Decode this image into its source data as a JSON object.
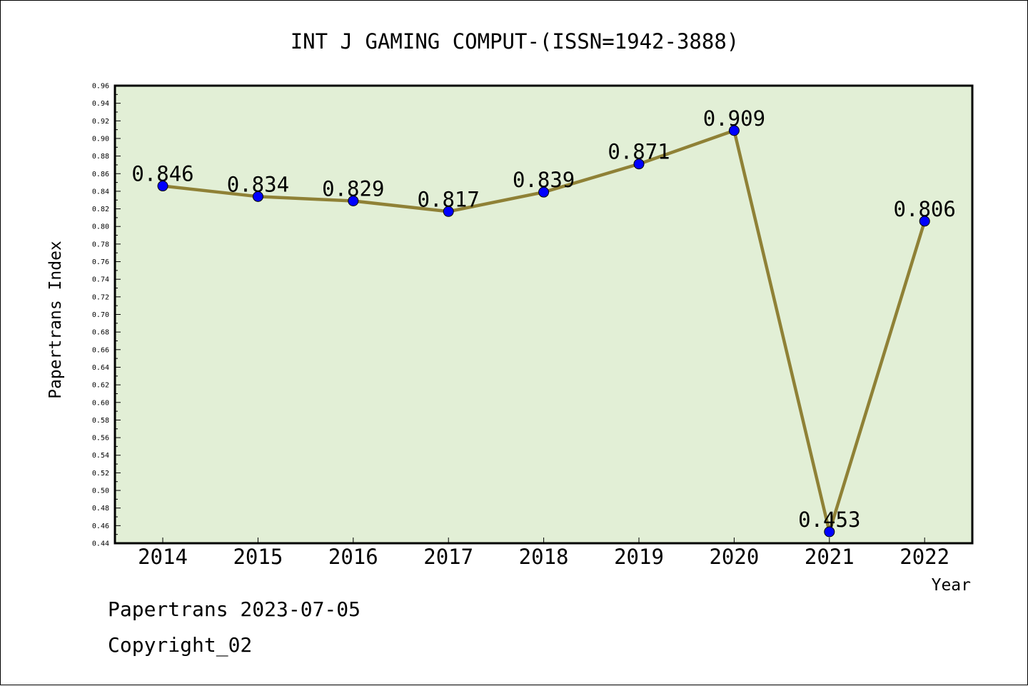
{
  "chart_data": {
    "type": "line",
    "title": "INT J GAMING COMPUT-(ISSN=1942-3888)",
    "xlabel": "Year",
    "ylabel": "Papertrans Index",
    "categories": [
      "2014",
      "2015",
      "2016",
      "2017",
      "2018",
      "2019",
      "2020",
      "2021",
      "2022"
    ],
    "values": [
      0.846,
      0.834,
      0.829,
      0.817,
      0.839,
      0.871,
      0.909,
      0.453,
      0.806
    ],
    "data_labels": [
      "0.846",
      "0.834",
      "0.829",
      "0.817",
      "0.839",
      "0.871",
      "0.909",
      "0.453",
      "0.806"
    ],
    "ylim": [
      0.44,
      0.96
    ],
    "ytick_step": 0.02,
    "ytick_labels": [
      "0.44",
      "0.46",
      "0.48",
      "0.50",
      "0.52",
      "0.54",
      "0.56",
      "0.58",
      "0.60",
      "0.62",
      "0.64",
      "0.66",
      "0.68",
      "0.70",
      "0.72",
      "0.74",
      "0.76",
      "0.78",
      "0.80",
      "0.82",
      "0.84",
      "0.86",
      "0.88",
      "0.90",
      "0.92",
      "0.94",
      "0.96"
    ],
    "grid": false,
    "legend": "none",
    "colors": {
      "plot_background": "#e2efd6",
      "line": "#8f8136",
      "marker": "#0000ff",
      "axis": "#000000"
    }
  },
  "footer": {
    "line1": "Papertrans 2023-07-05",
    "line2": "Copyright_02"
  }
}
